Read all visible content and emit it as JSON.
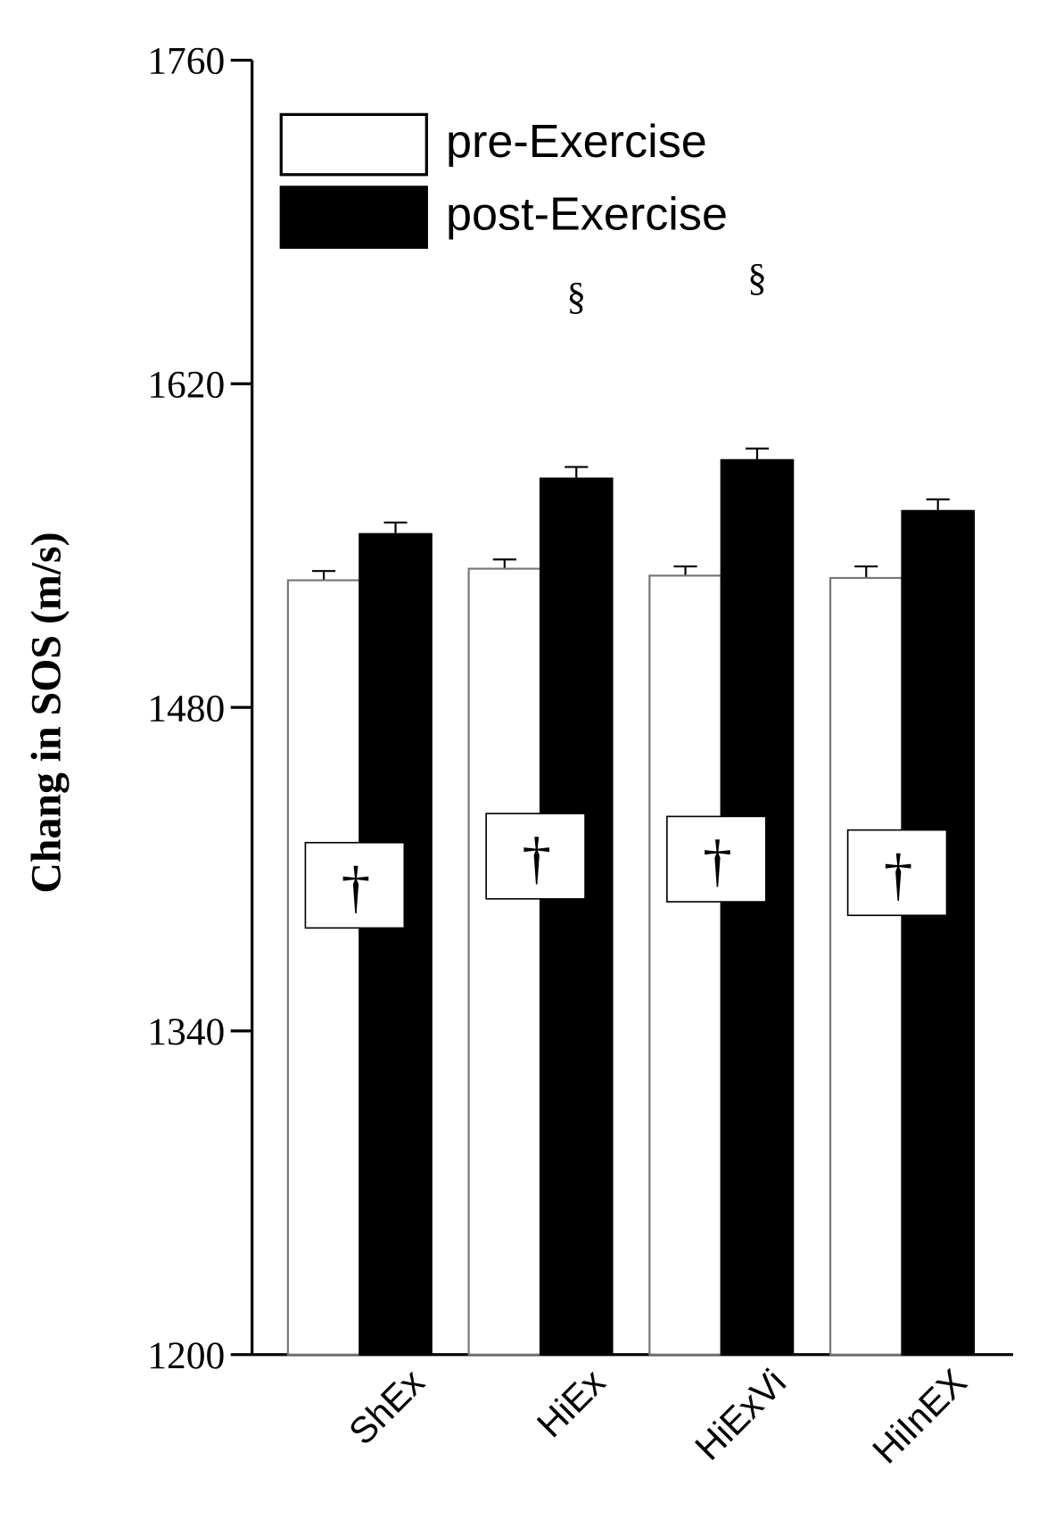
{
  "chart_data": {
    "type": "bar",
    "y_label": "Chang in SOS (m/s)",
    "categories": [
      "ShEx",
      "HiEx",
      "HiExVi",
      "HiInEX"
    ],
    "series": [
      {
        "name": "pre-Exercise",
        "color": "#ffffff",
        "values": [
          1535,
          1540,
          1537,
          1536
        ],
        "errors": [
          4,
          4,
          4,
          5
        ]
      },
      {
        "name": "post-Exercise",
        "color": "#000000",
        "values": [
          1555,
          1579,
          1587,
          1565
        ],
        "errors": [
          5,
          5,
          5,
          5
        ]
      }
    ],
    "ylim": [
      1200,
      1760
    ],
    "yticks": [
      1200,
      1340,
      1480,
      1620,
      1760
    ],
    "annotations": [
      {
        "text": "§",
        "category": 1
      },
      {
        "text": "§",
        "category": 2
      },
      {
        "text": "†",
        "category": 0
      },
      {
        "text": "†",
        "category": 1
      },
      {
        "text": "†",
        "category": 2
      },
      {
        "text": "†",
        "category": 3
      }
    ]
  }
}
